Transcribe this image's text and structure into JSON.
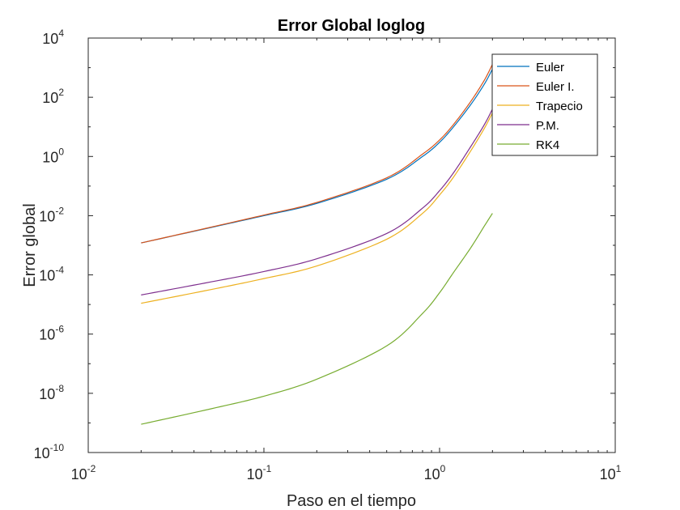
{
  "chart_data": {
    "type": "line",
    "title": "Error Global loglog",
    "xlabel": "Paso en el tiempo",
    "ylabel": "Error global",
    "xscale": "log",
    "yscale": "log",
    "xlim": [
      0.01,
      10
    ],
    "ylim": [
      1e-10,
      10000
    ],
    "x_ticks": [
      {
        "base": "10",
        "exp": "-2",
        "value": 0.01
      },
      {
        "base": "10",
        "exp": "-1",
        "value": 0.1
      },
      {
        "base": "10",
        "exp": "0",
        "value": 1
      },
      {
        "base": "10",
        "exp": "1",
        "value": 10
      }
    ],
    "y_ticks": [
      {
        "base": "10",
        "exp": "-10",
        "value": 1e-10
      },
      {
        "base": "10",
        "exp": "-8",
        "value": 1e-08
      },
      {
        "base": "10",
        "exp": "-6",
        "value": 1e-06
      },
      {
        "base": "10",
        "exp": "-4",
        "value": 0.0001
      },
      {
        "base": "10",
        "exp": "-2",
        "value": 0.01
      },
      {
        "base": "10",
        "exp": "0",
        "value": 1
      },
      {
        "base": "10",
        "exp": "2",
        "value": 100
      },
      {
        "base": "10",
        "exp": "4",
        "value": 10000
      }
    ],
    "grid": false,
    "legend_position": "top-right",
    "x": [
      0.02,
      0.05,
      0.1,
      0.2,
      0.5,
      0.8,
      1.0,
      1.2,
      1.5,
      1.8,
      2.0
    ],
    "series": [
      {
        "name": "Euler",
        "color": "#0072BD",
        "values": [
          0.0012,
          0.004,
          0.01,
          0.026,
          0.17,
          1.0,
          3.0,
          10,
          55,
          280,
          900
        ]
      },
      {
        "name": "Euler I.",
        "color": "#D95319",
        "values": [
          0.0012,
          0.0041,
          0.0105,
          0.028,
          0.19,
          1.2,
          3.6,
          12,
          70,
          380,
          1300
        ]
      },
      {
        "name": "Trapecio",
        "color": "#EDB120",
        "values": [
          1.1e-05,
          3.2e-05,
          7.5e-05,
          0.0002,
          0.0016,
          0.012,
          0.05,
          0.2,
          1.5,
          9,
          30
        ]
      },
      {
        "name": "P.M.",
        "color": "#7E2F8E",
        "values": [
          2.1e-05,
          5.8e-05,
          0.00013,
          0.00035,
          0.0025,
          0.018,
          0.07,
          0.28,
          2.1,
          12,
          40
        ]
      },
      {
        "name": "RK4",
        "color": "#77AC30",
        "values": [
          9e-10,
          3e-09,
          8e-09,
          3e-08,
          4e-07,
          5e-06,
          2.5e-05,
          0.00012,
          0.0008,
          0.0045,
          0.012
        ]
      }
    ]
  }
}
